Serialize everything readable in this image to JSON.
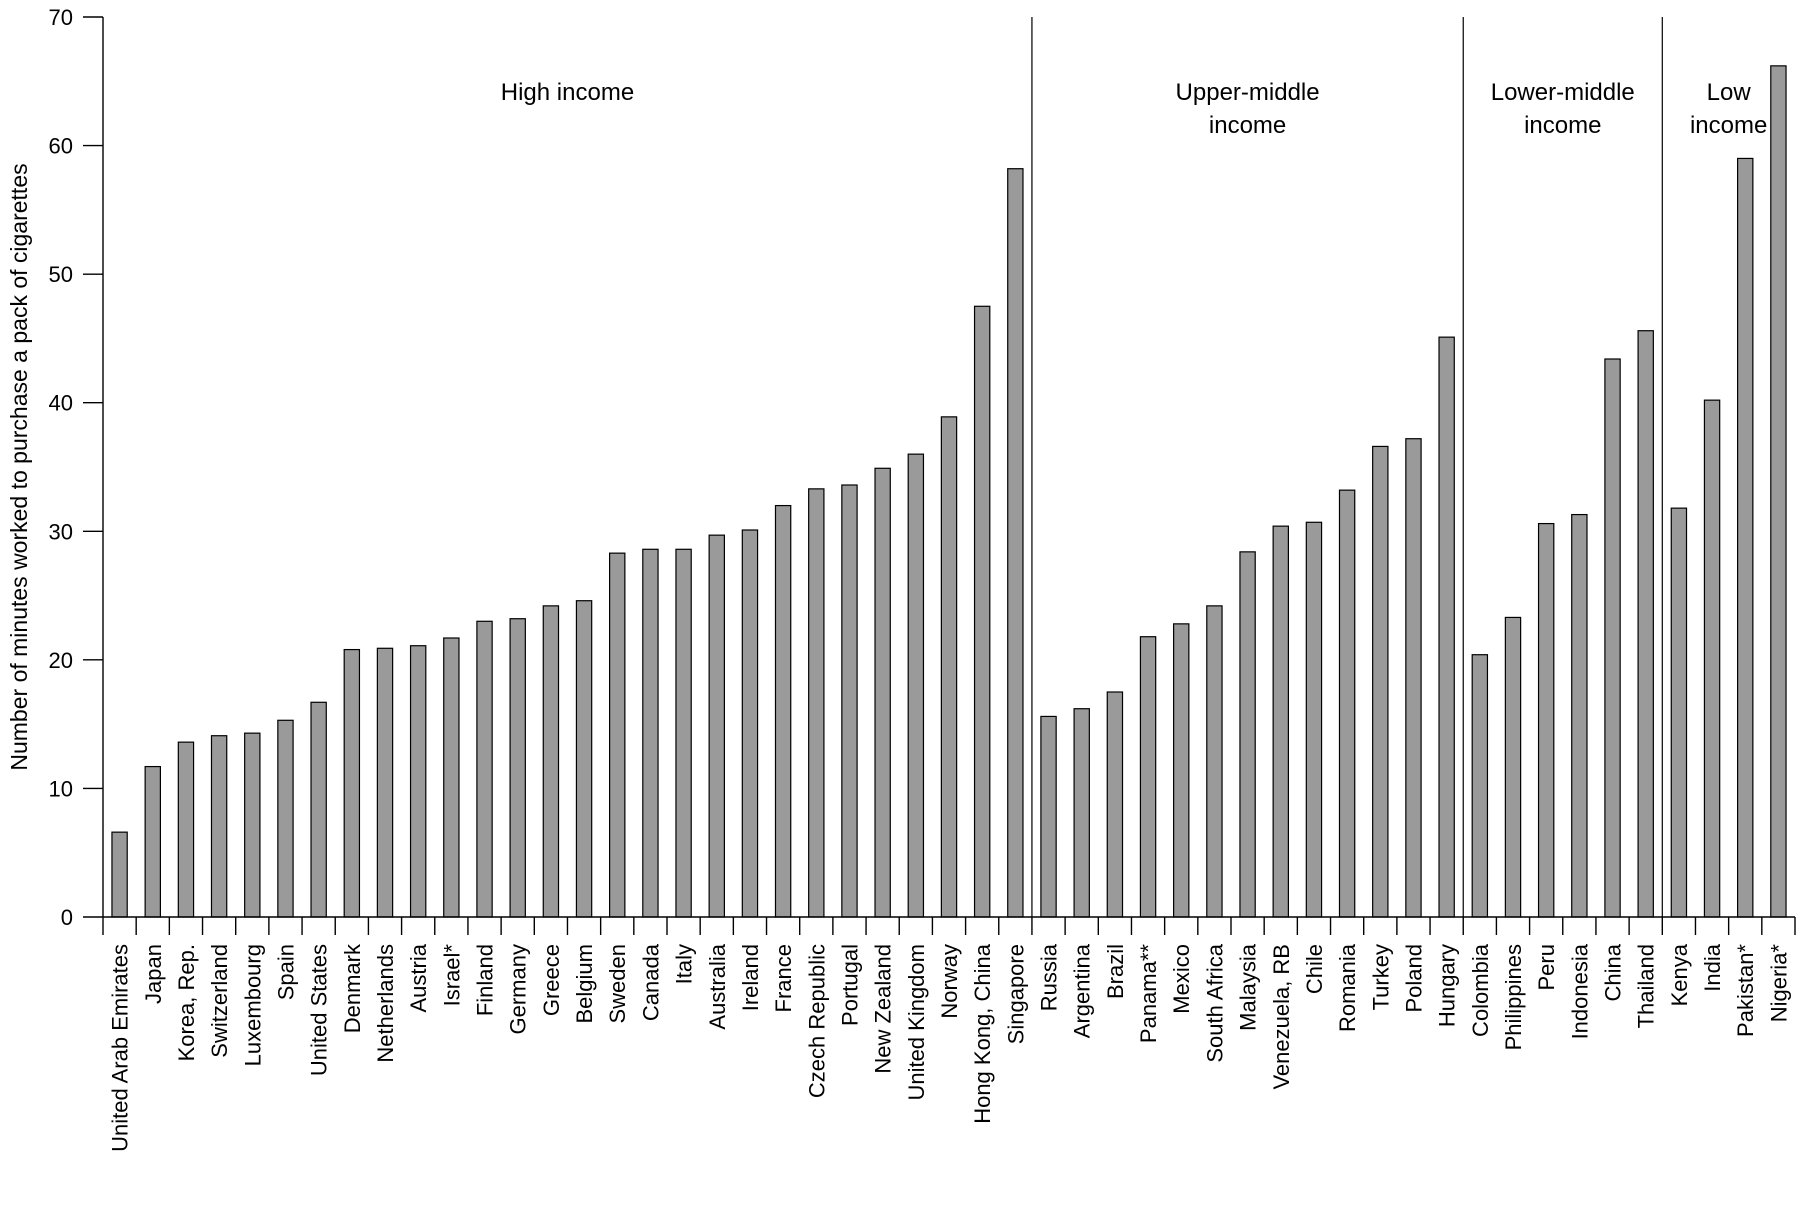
{
  "chart_data": {
    "type": "bar",
    "title": "",
    "xlabel": "",
    "ylabel": "Number of minutes worked to purchase a pack of cigarettes",
    "ylim": [
      0,
      70
    ],
    "yticks": [
      0,
      10,
      20,
      30,
      40,
      50,
      60,
      70
    ],
    "grid": false,
    "categories": [
      "United Arab Emirates",
      "Japan",
      "Korea, Rep.",
      "Switzerland",
      "Luxembourg",
      "Spain",
      "United States",
      "Denmark",
      "Netherlands",
      "Austria",
      "Israel*",
      "Finland",
      "Germany",
      "Greece",
      "Belgium",
      "Sweden",
      "Canada",
      "Italy",
      "Australia",
      "Ireland",
      "France",
      "Czech Republic",
      "Portugal",
      "New Zealand",
      "United Kingdom",
      "Norway",
      "Hong Kong, China",
      "Singapore",
      "Russia",
      "Argentina",
      "Brazil",
      "Panama**",
      "Mexico",
      "South Africa",
      "Malaysia",
      "Venezuela, RB",
      "Chile",
      "Romania",
      "Turkey",
      "Poland",
      "Hungary",
      "Colombia",
      "Philippines",
      "Peru",
      "Indonesia",
      "China",
      "Thailand",
      "Kenya",
      "India",
      "Pakistan*",
      "Nigeria*"
    ],
    "values": [
      6.6,
      11.7,
      13.6,
      14.1,
      14.3,
      15.3,
      16.7,
      20.8,
      20.9,
      21.1,
      21.7,
      23.0,
      23.2,
      24.2,
      24.6,
      28.3,
      28.6,
      28.6,
      29.7,
      30.1,
      32.0,
      33.3,
      33.6,
      34.9,
      36.0,
      38.9,
      47.5,
      58.2,
      15.6,
      16.2,
      17.5,
      21.8,
      22.8,
      24.2,
      28.4,
      30.4,
      30.7,
      33.2,
      36.6,
      37.2,
      45.1,
      20.4,
      23.3,
      30.6,
      31.3,
      43.4,
      45.6,
      31.8,
      40.2,
      59.0,
      66.2
    ],
    "groups": [
      {
        "label_lines": [
          "High income"
        ],
        "start": 0,
        "end": 27
      },
      {
        "label_lines": [
          "Upper-middle",
          "income"
        ],
        "start": 28,
        "end": 40
      },
      {
        "label_lines": [
          "Lower-middle",
          "income"
        ],
        "start": 41,
        "end": 46
      },
      {
        "label_lines": [
          "Low",
          "income"
        ],
        "start": 47,
        "end": 50
      }
    ]
  }
}
